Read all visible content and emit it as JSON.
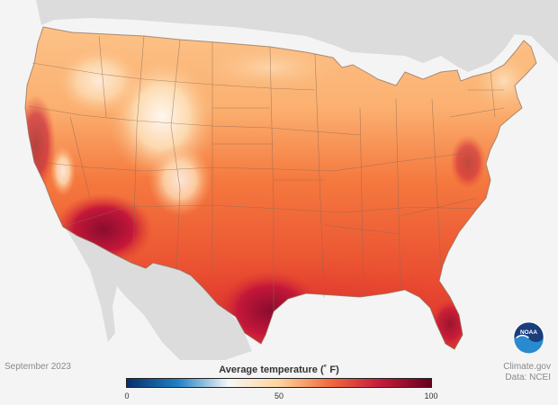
{
  "footer": {
    "date": "September 2023",
    "source_site": "Climate.gov",
    "source_data": "Data: NCEI"
  },
  "legend": {
    "title": "Average temperature (˚ F)",
    "ticks": [
      "0",
      "50",
      "100"
    ],
    "min": 0,
    "max": 100,
    "colors": [
      "#08306b",
      "#1f7fc4",
      "#f7f7f7",
      "#fdd49e",
      "#f16b3e",
      "#c51b3b",
      "#67001f"
    ]
  },
  "logo": {
    "text": "NOAA",
    "colors": {
      "top": "#1a3d7c",
      "bottom": "#2a8ad0"
    }
  },
  "map": {
    "land_color": "#dcdcdc",
    "water_color": "#f4f4f4",
    "boundary_color": "#8c6a55",
    "colors": {
      "cool": "#fde0b8",
      "mild": "#fbb070",
      "warm": "#f5793f",
      "hot": "#e33d2f",
      "very_hot": "#c4173a",
      "extreme": "#7a0a2a",
      "snow": "#ffffff"
    }
  }
}
